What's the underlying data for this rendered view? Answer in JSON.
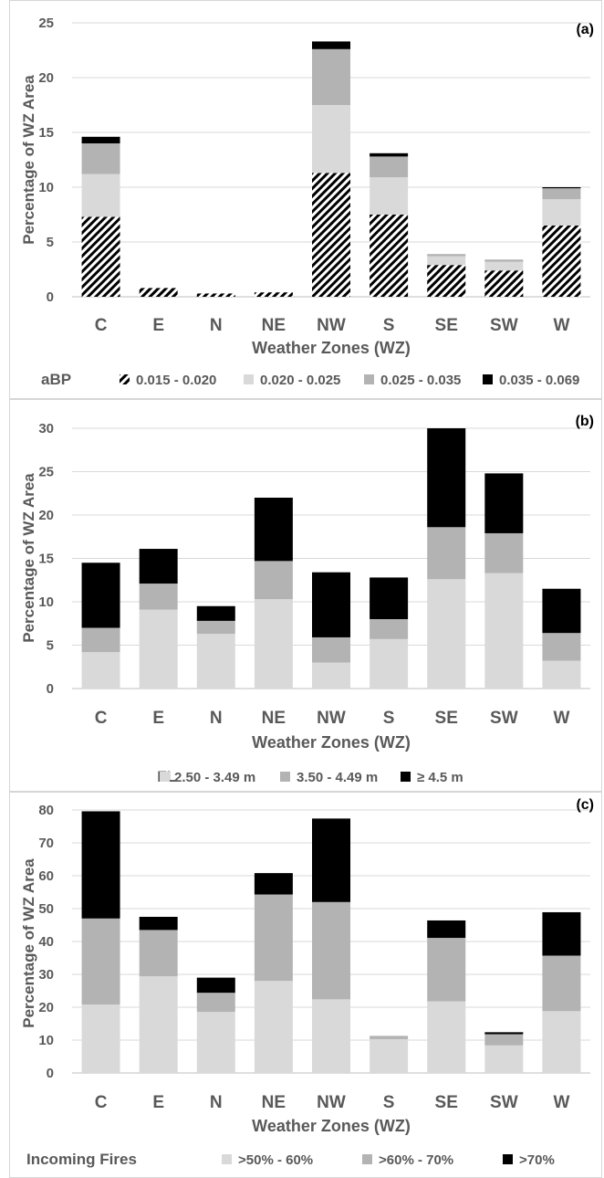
{
  "colors": {
    "light": "#d9d9d9",
    "mid": "#b3b3b3",
    "dark": "#000000",
    "hatch": "#000000",
    "grid": "#d9d9d9",
    "text": "#595959"
  },
  "chart_data": [
    {
      "type": "bar",
      "stacked": true,
      "panel_label": "(a)",
      "xlabel": "Weather Zones (WZ)",
      "ylabel": "Percentage of WZ Area",
      "ylim": [
        0,
        25
      ],
      "yticks": [
        0,
        5,
        10,
        15,
        20,
        25
      ],
      "legend_title": "aBP",
      "legend_position": "bottom",
      "categories": [
        "C",
        "E",
        "N",
        "NE",
        "NW",
        "S",
        "SE",
        "SW",
        "W"
      ],
      "series": [
        {
          "name": "0.015 - 0.020",
          "fill": "hatch",
          "values": [
            7.3,
            0.8,
            0.3,
            0.4,
            11.3,
            7.5,
            2.9,
            2.4,
            6.5
          ]
        },
        {
          "name": "0.020 - 0.025",
          "fill": "light",
          "values": [
            3.9,
            0.0,
            0.0,
            0.0,
            6.2,
            3.4,
            0.8,
            0.8,
            2.4
          ]
        },
        {
          "name": "0.025 - 0.035",
          "fill": "mid",
          "values": [
            2.8,
            0.0,
            0.0,
            0.0,
            5.1,
            1.9,
            0.2,
            0.2,
            1.0
          ]
        },
        {
          "name": "0.035 - 0.069",
          "fill": "dark",
          "values": [
            0.6,
            0.0,
            0.0,
            0.0,
            0.7,
            0.3,
            0.0,
            0.0,
            0.1
          ]
        }
      ]
    },
    {
      "type": "bar",
      "stacked": true,
      "panel_label": "(b)",
      "xlabel": "Weather Zones (WZ)",
      "ylabel": "Percentage of WZ Area",
      "ylim": [
        0,
        30
      ],
      "yticks": [
        0,
        5,
        10,
        15,
        20,
        25,
        30
      ],
      "legend_title": "FL",
      "legend_position": "bottom",
      "categories": [
        "C",
        "E",
        "N",
        "NE",
        "NW",
        "S",
        "SE",
        "SW",
        "W"
      ],
      "series": [
        {
          "name": "2.50 - 3.49 m",
          "fill": "light",
          "values": [
            4.2,
            9.1,
            6.3,
            10.3,
            3.0,
            5.7,
            12.6,
            13.3,
            3.2
          ]
        },
        {
          "name": "3.50 - 4.49 m",
          "fill": "mid",
          "values": [
            2.8,
            3.0,
            1.5,
            4.4,
            2.9,
            2.3,
            6.0,
            4.6,
            3.2
          ]
        },
        {
          "name": "≥ 4.5 m",
          "fill": "dark",
          "values": [
            7.5,
            4.0,
            1.7,
            7.3,
            7.5,
            4.8,
            11.4,
            6.9,
            5.1
          ]
        }
      ]
    },
    {
      "type": "bar",
      "stacked": true,
      "panel_label": "(c)",
      "xlabel": "Weather Zones (WZ)",
      "ylabel": "Percentage of WZ Area",
      "ylim": [
        0,
        80
      ],
      "yticks": [
        0,
        10,
        20,
        30,
        40,
        50,
        60,
        70,
        80
      ],
      "legend_title": "Incoming Fires",
      "legend_position": "bottom",
      "categories": [
        "C",
        "E",
        "N",
        "NE",
        "NW",
        "S",
        "SE",
        "SW",
        "W"
      ],
      "series": [
        {
          "name": ">50% - 60%",
          "fill": "light",
          "values": [
            20.8,
            29.4,
            18.6,
            28.0,
            22.4,
            10.3,
            21.8,
            8.4,
            18.8
          ]
        },
        {
          "name": ">60% - 70%",
          "fill": "mid",
          "values": [
            26.2,
            14.1,
            5.8,
            26.3,
            29.6,
            1.0,
            19.3,
            3.4,
            16.9
          ]
        },
        {
          "name": ">70%",
          "fill": "dark",
          "values": [
            32.6,
            4.0,
            4.6,
            6.5,
            25.4,
            0.0,
            5.3,
            0.6,
            13.2
          ]
        }
      ]
    }
  ]
}
